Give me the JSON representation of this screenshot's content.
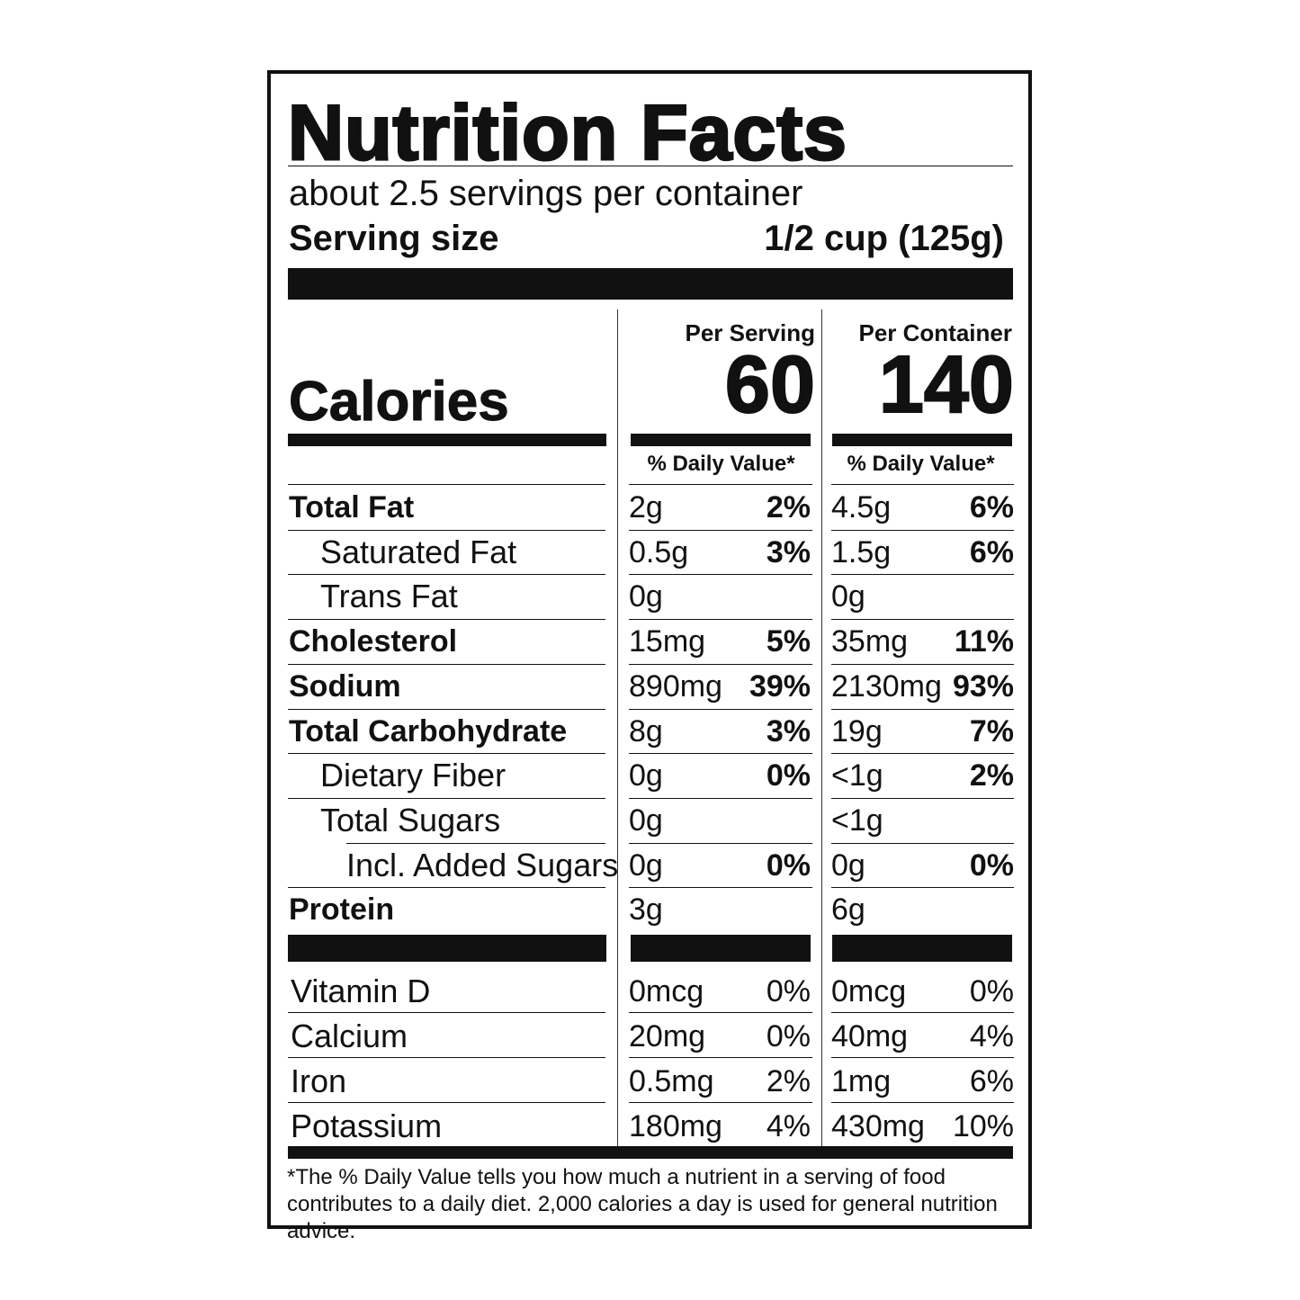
{
  "title": "Nutrition Facts",
  "servings_per_container": "about 2.5 servings per container",
  "serving_size_label": "Serving size",
  "serving_size_value": "1/2 cup (125g)",
  "calories_label": "Calories",
  "columns": [
    {
      "header": "Per Serving",
      "calories": "60",
      "dv_header": "% Daily Value*"
    },
    {
      "header": "Per Container",
      "calories": "140",
      "dv_header": "% Daily Value*"
    }
  ],
  "nutrients": [
    {
      "name": "Total Fat",
      "bold": true,
      "indent": 0,
      "serving": {
        "amount": "2g",
        "dv": "2%"
      },
      "container": {
        "amount": "4.5g",
        "dv": "6%"
      }
    },
    {
      "name": "Saturated Fat",
      "bold": false,
      "indent": 1,
      "serving": {
        "amount": "0.5g",
        "dv": "3%"
      },
      "container": {
        "amount": "1.5g",
        "dv": "6%"
      }
    },
    {
      "name": "Trans Fat",
      "bold": false,
      "indent": 1,
      "serving": {
        "amount": "0g",
        "dv": ""
      },
      "container": {
        "amount": "0g",
        "dv": ""
      }
    },
    {
      "name": "Cholesterol",
      "bold": true,
      "indent": 0,
      "serving": {
        "amount": "15mg",
        "dv": "5%"
      },
      "container": {
        "amount": "35mg",
        "dv": "11%"
      }
    },
    {
      "name": "Sodium",
      "bold": true,
      "indent": 0,
      "serving": {
        "amount": "890mg",
        "dv": "39%"
      },
      "container": {
        "amount": "2130mg",
        "dv": "93%"
      }
    },
    {
      "name": "Total Carbohydrate",
      "bold": true,
      "indent": 0,
      "serving": {
        "amount": "8g",
        "dv": "3%"
      },
      "container": {
        "amount": "19g",
        "dv": "7%"
      }
    },
    {
      "name": "Dietary Fiber",
      "bold": false,
      "indent": 1,
      "serving": {
        "amount": "0g",
        "dv": "0%"
      },
      "container": {
        "amount": "<1g",
        "dv": "2%"
      }
    },
    {
      "name": "Total Sugars",
      "bold": false,
      "indent": 1,
      "serving": {
        "amount": "0g",
        "dv": ""
      },
      "container": {
        "amount": "<1g",
        "dv": ""
      }
    },
    {
      "name": "Incl. Added Sugars",
      "bold": false,
      "indent": 2,
      "serving": {
        "amount": "0g",
        "dv": "0%"
      },
      "container": {
        "amount": "0g",
        "dv": "0%"
      }
    },
    {
      "name": "Protein",
      "bold": true,
      "indent": 0,
      "serving": {
        "amount": "3g",
        "dv": ""
      },
      "container": {
        "amount": "6g",
        "dv": ""
      }
    }
  ],
  "vitamins": [
    {
      "name": "Vitamin D",
      "serving": {
        "amount": "0mcg",
        "dv": "0%"
      },
      "container": {
        "amount": "0mcg",
        "dv": "0%"
      }
    },
    {
      "name": "Calcium",
      "serving": {
        "amount": "20mg",
        "dv": "0%"
      },
      "container": {
        "amount": "40mg",
        "dv": "4%"
      }
    },
    {
      "name": "Iron",
      "serving": {
        "amount": "0.5mg",
        "dv": "2%"
      },
      "container": {
        "amount": "1mg",
        "dv": "6%"
      }
    },
    {
      "name": "Potassium",
      "serving": {
        "amount": "180mg",
        "dv": "4%"
      },
      "container": {
        "amount": "430mg",
        "dv": "10%"
      }
    }
  ],
  "footnote": "*The % Daily Value tells you how much a nutrient in a serving of food contributes to a daily diet. 2,000 calories a day is used for general nutrition advice."
}
